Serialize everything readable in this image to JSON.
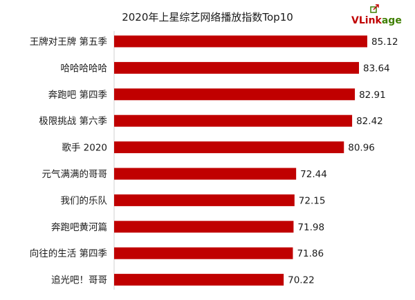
{
  "chart_data": {
    "type": "bar",
    "orientation": "horizontal",
    "title": "2020年上星综艺网络播放指数Top10",
    "categories": [
      "王牌对王牌 第五季",
      "哈哈哈哈哈",
      "奔跑吧 第四季",
      "极限挑战 第六季",
      "歌手 2020",
      "元气满满的哥哥",
      "我们的乐队",
      "奔跑吧黄河篇",
      "向往的生活 第四季",
      "追光吧！哥哥"
    ],
    "values": [
      85.12,
      83.64,
      82.91,
      82.42,
      80.96,
      72.44,
      72.15,
      71.98,
      71.86,
      70.22
    ],
    "value_labels": [
      "85.12",
      "83.64",
      "82.91",
      "82.42",
      "80.96",
      "72.44",
      "72.15",
      "71.98",
      "71.86",
      "70.22"
    ],
    "xlim": [
      40,
      85.12
    ],
    "grid": false,
    "legend": "none",
    "bar_color": "#c00000"
  },
  "logo": {
    "text_v": "V",
    "text_rest": "Link",
    "text_end": "age",
    "color_v": "#c00000",
    "color_rest": "#c00000",
    "color_end": "#3f7f00"
  }
}
